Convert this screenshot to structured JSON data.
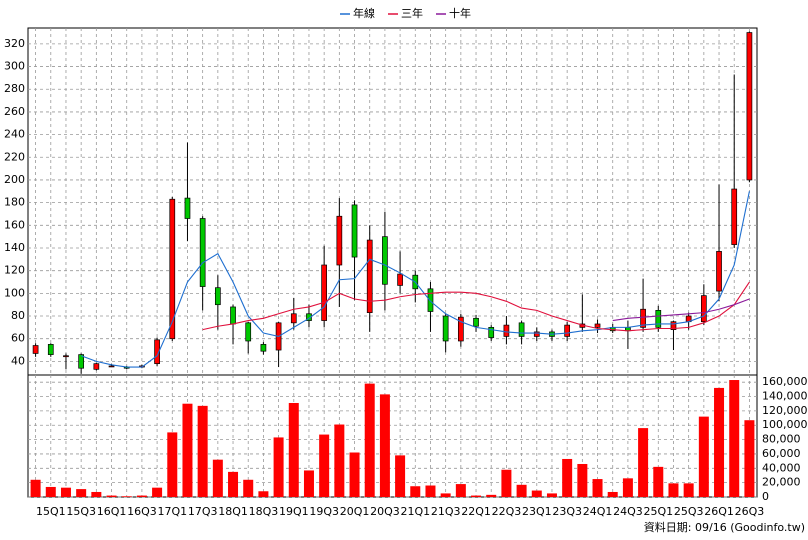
{
  "chart_data": [
    {
      "type": "candlestick",
      "categories": [
        null,
        "15Q1",
        null,
        "15Q3",
        null,
        "16Q1",
        null,
        "16Q3",
        null,
        "17Q1",
        null,
        "17Q3",
        null,
        "18Q1",
        null,
        "18Q3",
        null,
        "19Q1",
        null,
        "19Q3",
        null,
        "20Q1",
        null,
        "20Q3",
        null,
        "21Q1",
        null,
        "21Q3",
        null,
        "22Q1",
        null,
        "22Q3",
        null,
        "23Q1",
        null,
        "23Q3",
        null,
        "24Q1",
        null,
        "24Q3",
        null,
        "25Q1",
        null,
        "25Q3",
        null,
        "26Q1",
        null,
        "26Q3"
      ],
      "open": [
        47,
        55,
        45,
        46,
        33,
        36,
        35,
        35,
        38,
        60,
        184,
        166,
        105,
        88,
        74,
        55,
        50,
        74,
        82,
        76,
        125,
        178,
        83,
        150,
        107,
        116,
        104,
        80,
        58,
        78,
        70,
        62,
        74,
        62,
        66,
        62,
        70,
        70,
        70,
        70,
        70,
        85,
        68,
        75,
        75,
        102,
        143,
        200
      ],
      "high": [
        56,
        56,
        47,
        47,
        39,
        38,
        36,
        37,
        61,
        185,
        233,
        168,
        116,
        90,
        75,
        57,
        75,
        96,
        90,
        142,
        184,
        182,
        160,
        172,
        137,
        120,
        110,
        82,
        82,
        81,
        72,
        80,
        76,
        70,
        68,
        75,
        99,
        77,
        73,
        76,
        113,
        89,
        76,
        83,
        108,
        196,
        293,
        331
      ],
      "low": [
        44,
        44,
        33,
        29,
        32,
        35,
        33,
        34,
        36,
        58,
        146,
        85,
        68,
        55,
        47,
        46,
        35,
        68,
        70,
        70,
        88,
        94,
        66,
        85,
        100,
        92,
        66,
        48,
        53,
        66,
        58,
        55,
        55,
        58,
        58,
        58,
        66,
        65,
        65,
        51,
        66,
        66,
        50,
        68,
        72,
        93,
        140,
        198
      ],
      "close": [
        54,
        46,
        45,
        34,
        38,
        36,
        34,
        36,
        59,
        183,
        166,
        106,
        90,
        73,
        58,
        49,
        74,
        82,
        76,
        125,
        168,
        132,
        147,
        108,
        117,
        104,
        84,
        58,
        79,
        71,
        61,
        72,
        62,
        66,
        62,
        72,
        73,
        73,
        67,
        67,
        86,
        70,
        75,
        80,
        98,
        137,
        192,
        330
      ],
      "up_color": "#ff0000",
      "down_color": "#00c800",
      "series": [
        {
          "name": "年線",
          "color": "#1f6fd0",
          "values": [
            null,
            null,
            null,
            45,
            40,
            37,
            35,
            35,
            45,
            75,
            110,
            127,
            135,
            110,
            80,
            65,
            62,
            70,
            78,
            88,
            112,
            113,
            130,
            125,
            118,
            110,
            93,
            82,
            75,
            70,
            68,
            66,
            65,
            65,
            64,
            65,
            67,
            68,
            70,
            70,
            72,
            73,
            73,
            75,
            80,
            95,
            125,
            190
          ]
        },
        {
          "name": "三年",
          "color": "#e0103c",
          "values": [
            null,
            null,
            null,
            null,
            null,
            null,
            null,
            null,
            null,
            null,
            null,
            68,
            71,
            73,
            76,
            78,
            82,
            86,
            88,
            92,
            100,
            95,
            93,
            94,
            97,
            99,
            100,
            101,
            101,
            100,
            97,
            93,
            87,
            85,
            80,
            76,
            72,
            69,
            68,
            67,
            68,
            69,
            69,
            70,
            74,
            80,
            90,
            110
          ]
        },
        {
          "name": "十年",
          "color": "#8b1a9a",
          "values": [
            null,
            null,
            null,
            null,
            null,
            null,
            null,
            null,
            null,
            null,
            null,
            null,
            null,
            null,
            null,
            null,
            null,
            null,
            null,
            null,
            null,
            null,
            null,
            null,
            null,
            null,
            null,
            null,
            null,
            null,
            null,
            null,
            null,
            null,
            null,
            null,
            null,
            null,
            76,
            78,
            79,
            80,
            81,
            82,
            83,
            86,
            90,
            95
          ]
        }
      ],
      "ylim": [
        28,
        334
      ],
      "yticks": [
        40,
        60,
        80,
        100,
        120,
        140,
        160,
        180,
        200,
        220,
        240,
        260,
        280,
        300,
        320
      ],
      "grid": true
    },
    {
      "type": "bar",
      "color": "#ff0000",
      "values": [
        24000,
        14000,
        13000,
        11000,
        7000,
        2000,
        1000,
        2000,
        13000,
        90000,
        130000,
        127000,
        52000,
        35000,
        24000,
        8000,
        83000,
        131000,
        37000,
        87000,
        101000,
        62000,
        158000,
        143000,
        58000,
        15000,
        16000,
        5000,
        18000,
        2000,
        3000,
        38000,
        17000,
        9000,
        5000,
        53000,
        46000,
        25000,
        7000,
        26000,
        96000,
        42000,
        19000,
        19000,
        112000,
        152000,
        163000,
        107000
      ],
      "ylim": [
        0,
        170000
      ],
      "yticks": [
        0,
        {
          "value": 20000,
          "label": "20,000"
        },
        {
          "value": 40000,
          "label": "40,000"
        },
        {
          "value": 60000,
          "label": "60,000"
        },
        {
          "value": 80000,
          "label": "80,000"
        },
        {
          "value": 100000,
          "label": "100,000"
        },
        {
          "value": 120000,
          "label": "120,000"
        },
        {
          "value": 140000,
          "label": "140,000"
        },
        {
          "value": 160000,
          "label": "160,000"
        }
      ],
      "grid": true,
      "annotation": "資料日期: 09/16 (Goodinfo.tw)"
    }
  ]
}
